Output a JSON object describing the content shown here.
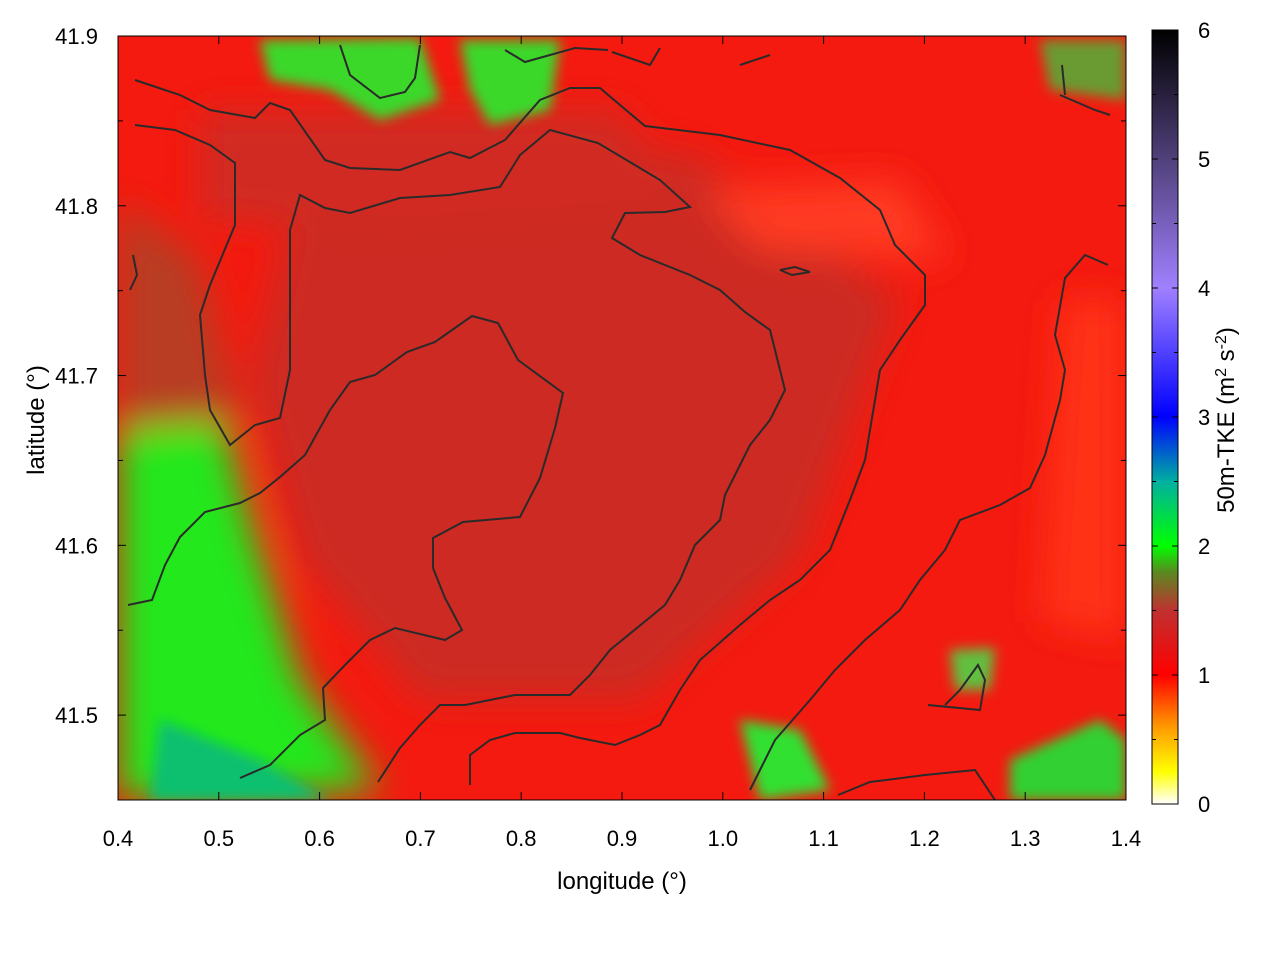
{
  "chart_data": {
    "type": "heatmap",
    "title": "",
    "xlabel": "longitude (°)",
    "ylabel": "latitude (°)",
    "colorbar_label": "50m-TKE (m² s⁻²)",
    "xlim": [
      0.4,
      1.4
    ],
    "ylim": [
      41.45,
      41.9
    ],
    "x_ticks": [
      "0.4",
      "0.5",
      "0.6",
      "0.7",
      "0.8",
      "0.9",
      "1.0",
      "1.1",
      "1.2",
      "1.3",
      "1.4"
    ],
    "y_ticks": [
      "41.5",
      "41.6",
      "41.7",
      "41.8",
      "41.9"
    ],
    "colorbar_ticks": [
      "0",
      "1",
      "2",
      "3",
      "4",
      "5",
      "6"
    ],
    "colorbar_range": [
      0,
      6
    ],
    "colormap": [
      {
        "value": 0.0,
        "color": "#ffffff"
      },
      {
        "value": 0.25,
        "color": "#ffff00"
      },
      {
        "value": 0.6,
        "color": "#ff9900"
      },
      {
        "value": 1.0,
        "color": "#ff0000"
      },
      {
        "value": 1.5,
        "color": "#c03030"
      },
      {
        "value": 1.8,
        "color": "#5a8a20"
      },
      {
        "value": 2.0,
        "color": "#00ff00"
      },
      {
        "value": 2.5,
        "color": "#00b0a0"
      },
      {
        "value": 3.0,
        "color": "#0000ff"
      },
      {
        "value": 4.0,
        "color": "#a080ff"
      },
      {
        "value": 5.0,
        "color": "#50407a"
      },
      {
        "value": 6.0,
        "color": "#000000"
      }
    ],
    "field_description_regions": [
      {
        "name": "background",
        "value": 1.1
      },
      {
        "name": "central-darker-core",
        "value": 1.45
      },
      {
        "name": "west-low-band",
        "value": 2.0
      },
      {
        "name": "southwest-corner",
        "value": 2.2
      },
      {
        "name": "northeast-light",
        "value": 0.95
      }
    ],
    "grid": false,
    "contour_color": "#2a2a2a"
  }
}
